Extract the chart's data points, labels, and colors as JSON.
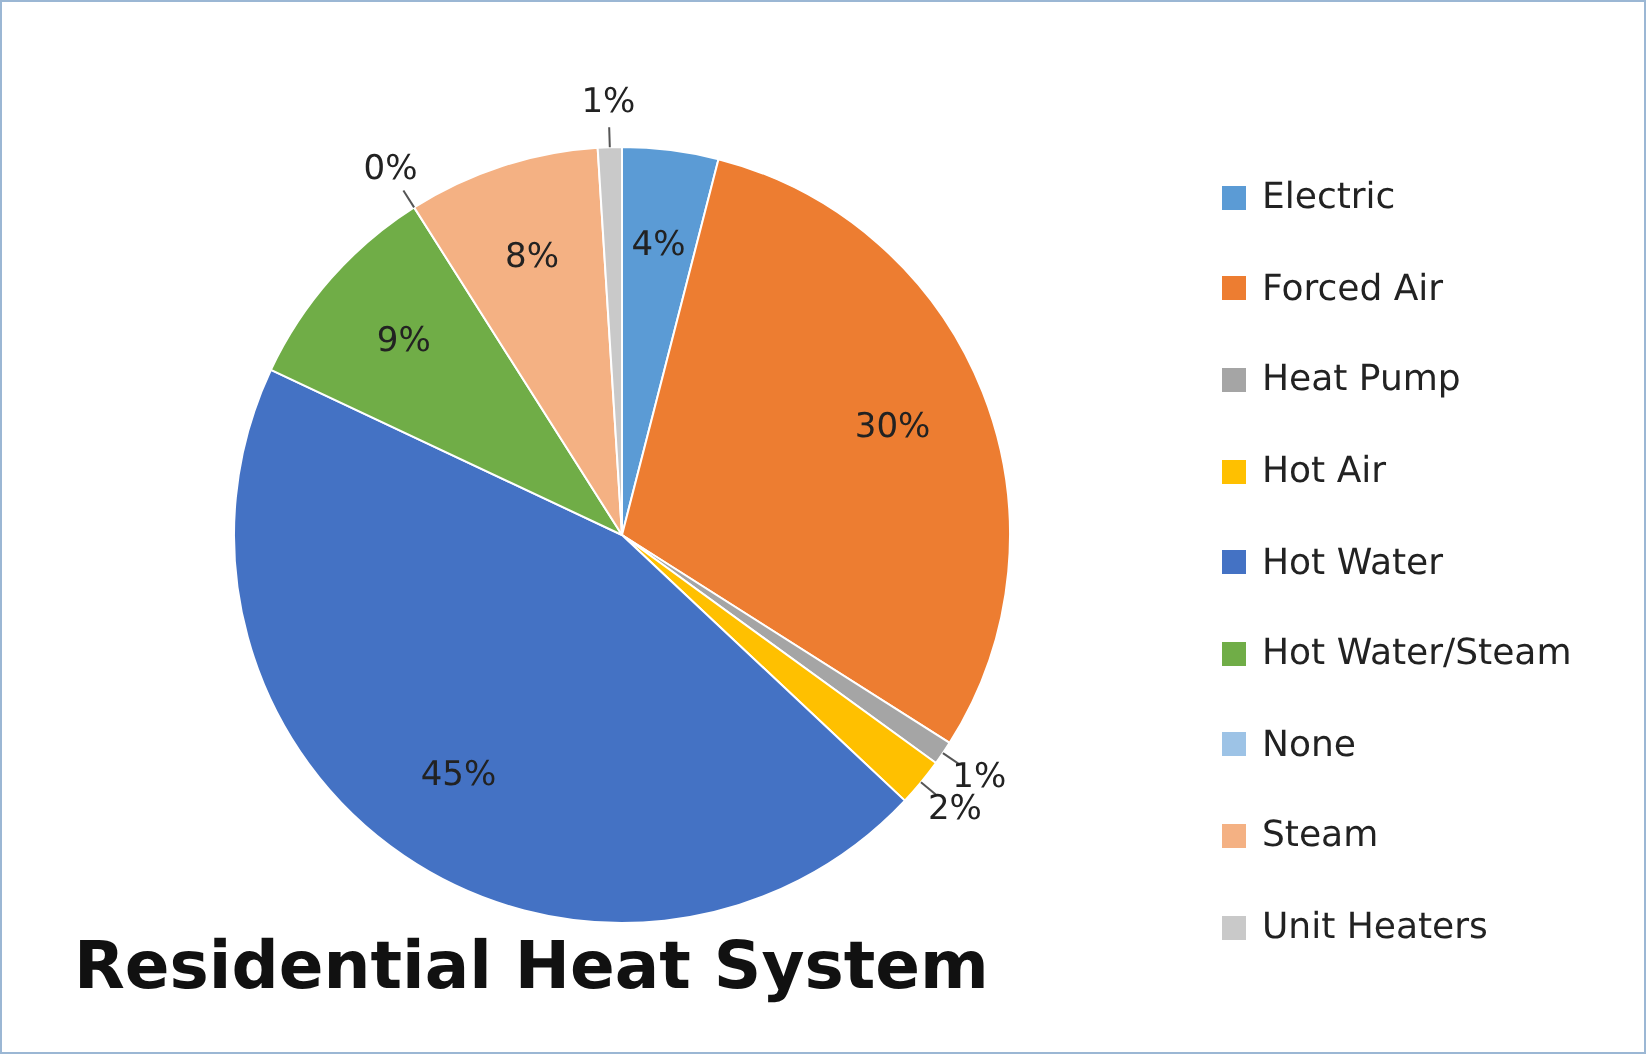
{
  "chart_data": {
    "type": "pie",
    "title": "Residential Heat System",
    "categories": [
      "Electric",
      "Forced Air",
      "Heat Pump",
      "Hot Air",
      "Hot Water",
      "Hot Water/Steam",
      "None",
      "Steam",
      "Unit Heaters"
    ],
    "values": [
      4,
      30,
      1,
      2,
      45,
      9,
      0,
      8,
      1
    ],
    "colors": [
      "#5b9bd5",
      "#ed7d31",
      "#a5a5a5",
      "#ffc000",
      "#4472c4",
      "#70ad47",
      "#9dc3e6",
      "#f4b183",
      "#c9c9c9"
    ],
    "value_labels": [
      "4%",
      "30%",
      "1%",
      "2%",
      "45%",
      "9%",
      "0%",
      "8%",
      "1%"
    ],
    "legend": "right"
  }
}
